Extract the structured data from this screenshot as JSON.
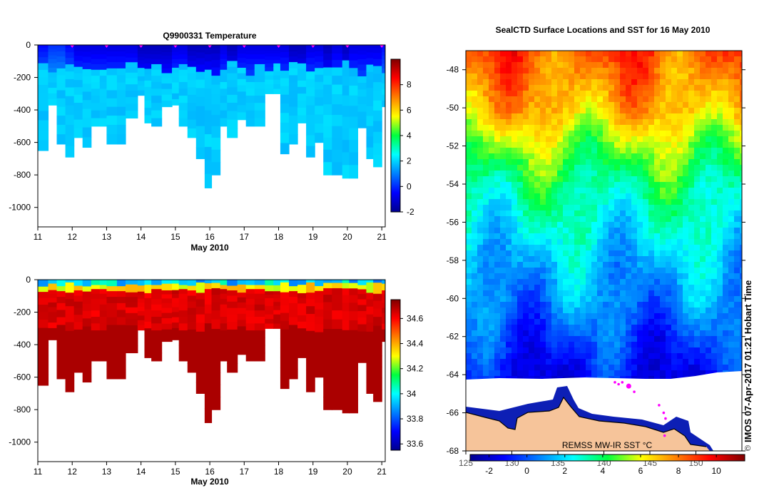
{
  "chart_data": [
    {
      "type": "heatmap",
      "title": "Q9900331  Temperature",
      "xlabel": "May 2010",
      "ylabel": "",
      "xlim": [
        11,
        21.1
      ],
      "ylim": [
        -1120,
        0
      ],
      "x_ticks": [
        "11",
        "12",
        "13",
        "14",
        "15",
        "16",
        "17",
        "18",
        "19",
        "20",
        "21"
      ],
      "y_ticks": [
        "0",
        "-200",
        "-400",
        "-600",
        "-800",
        "-1000"
      ],
      "colorbar": {
        "range": [
          -2,
          10
        ],
        "ticks": [
          "-2",
          "0",
          "2",
          "4",
          "6",
          "8"
        ]
      },
      "profile_days": [
        11.0,
        11.3,
        11.55,
        11.8,
        12.05,
        12.3,
        12.55,
        12.8,
        13.0,
        13.3,
        13.55,
        13.9,
        14.1,
        14.3,
        14.6,
        14.9,
        15.1,
        15.35,
        15.6,
        15.85,
        16.05,
        16.3,
        16.5,
        16.8,
        17.05,
        17.3,
        17.6,
        17.85,
        18.05,
        18.3,
        18.55,
        18.8,
        19.05,
        19.3,
        19.55,
        19.85,
        20.05,
        20.3,
        20.55,
        20.75,
        21.0
      ],
      "profile_max_depth": [
        650,
        370,
        610,
        690,
        570,
        630,
        500,
        500,
        610,
        610,
        450,
        310,
        480,
        500,
        380,
        370,
        500,
        570,
        700,
        880,
        800,
        500,
        570,
        460,
        500,
        500,
        300,
        300,
        670,
        610,
        480,
        690,
        600,
        800,
        800,
        820,
        820,
        510,
        700,
        750,
        380
      ],
      "surface_temp_c": [
        -0.5,
        0.0,
        0.0,
        -0.5,
        -1.0,
        -1.0,
        -1.0,
        -1.0,
        -1.0,
        -1.0,
        -1.0,
        -1.5,
        -1.5,
        -1.5,
        -1.5,
        -1.0,
        -1.0,
        -1.5,
        -1.5,
        -1.5,
        -1.5,
        -1.0,
        -1.5,
        -1.0,
        -1.0,
        -1.0,
        -1.0,
        -1.0,
        -1.0,
        -1.5,
        -1.5,
        -1.0,
        -1.0,
        -1.5,
        -1.0,
        -1.5,
        -1.0,
        -1.0,
        -1.0,
        -1.0,
        -0.5
      ],
      "deep_temp_c": 1.9,
      "markers": [
        12.0,
        13.0,
        14.0,
        15.0,
        16.0,
        17.0,
        18.0,
        19.0,
        20.0,
        21.0
      ]
    },
    {
      "type": "heatmap",
      "title": "",
      "xlabel": "May 2010",
      "ylabel": "",
      "xlim": [
        11,
        21.1
      ],
      "ylim": [
        -1120,
        0
      ],
      "x_ticks": [
        "11",
        "12",
        "13",
        "14",
        "15",
        "16",
        "17",
        "18",
        "19",
        "20",
        "21"
      ],
      "y_ticks": [
        "0",
        "-200",
        "-400",
        "-600",
        "-800",
        "-1000"
      ],
      "colorbar": {
        "range": [
          33.55,
          34.75
        ],
        "ticks": [
          "33.6",
          "33.8",
          "34",
          "34.2",
          "34.4",
          "34.6"
        ]
      },
      "surface_salinity": 33.9,
      "deep_salinity": 34.7
    },
    {
      "type": "heatmap",
      "title": "SealCTD Surface Locations and SST for 16 May 2010",
      "xlabel": "",
      "ylabel": "",
      "xlim": [
        125,
        155
      ],
      "ylim": [
        -68,
        -47
      ],
      "x_ticks": [
        "125",
        "130",
        "135",
        "140",
        "145",
        "150"
      ],
      "y_ticks": [
        "-48",
        "-50",
        "-52",
        "-54",
        "-56",
        "-58",
        "-60",
        "-62",
        "-64",
        "-66",
        "-68"
      ],
      "colorbar": {
        "range": [
          -3,
          11.5
        ],
        "ticks": [
          "-2",
          "0",
          "2",
          "4",
          "6",
          "8",
          "10"
        ]
      },
      "sst_latitude_profile": [
        {
          "lat": -47,
          "sst": 8.5
        },
        {
          "lat": -50,
          "sst": 7.0
        },
        {
          "lat": -52,
          "sst": 5.0
        },
        {
          "lat": -54,
          "sst": 3.5
        },
        {
          "lat": -56,
          "sst": 2.5
        },
        {
          "lat": -58,
          "sst": 1.5
        },
        {
          "lat": -60,
          "sst": 0.8
        },
        {
          "lat": -62,
          "sst": -0.3
        },
        {
          "lat": -64,
          "sst": -1.3
        }
      ],
      "seal_locations": [
        {
          "lon": 141.2,
          "lat": -64.4
        },
        {
          "lon": 141.6,
          "lat": -64.5
        },
        {
          "lon": 142.0,
          "lat": -64.4
        },
        {
          "lon": 142.7,
          "lat": -64.6
        },
        {
          "lon": 143.3,
          "lat": -64.9
        },
        {
          "lon": 146.0,
          "lat": -65.6
        },
        {
          "lon": 146.5,
          "lat": -66.0
        },
        {
          "lon": 146.7,
          "lat": -66.3
        },
        {
          "lon": 146.6,
          "lat": -67.2
        }
      ],
      "land_label": "REMSS MW-IR SST °C",
      "timestamp": "IMOS 07-Apr-2017 01:21 Hobart Time",
      "copyright": "©"
    }
  ]
}
